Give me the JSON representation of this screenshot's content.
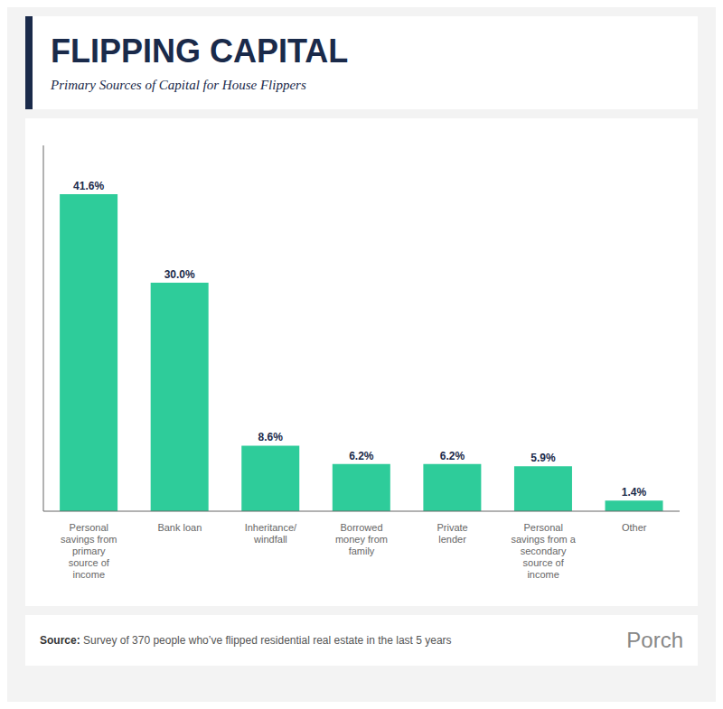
{
  "chart_data": {
    "type": "bar",
    "title": "FLIPPING CAPITAL",
    "subtitle": "Primary Sources of Capital for House Flippers",
    "categories": [
      "Personal\nsavings from\nprimary\nsource of\nincome",
      "Bank loan",
      "Inheritance/\nwindfall",
      "Borrowed\nmoney from\nfamily",
      "Private\nlender",
      "Personal\nsavings from a\nsecondary\nsource of\nincome",
      "Other"
    ],
    "values": [
      41.6,
      30.0,
      8.6,
      6.2,
      6.2,
      5.9,
      1.4
    ],
    "value_labels": [
      "41.6%",
      "30.0%",
      "8.6%",
      "6.2%",
      "6.2%",
      "5.9%",
      "1.4%"
    ],
    "color": "#2ECC9A",
    "ylim": [
      0,
      48
    ],
    "grid": false,
    "data_labels": true,
    "tick_labels": "x",
    "annotations": [
      "Source:",
      "Survey of 370 people who’ve flipped residential real estate in the last 5 years",
      "Porch"
    ]
  }
}
